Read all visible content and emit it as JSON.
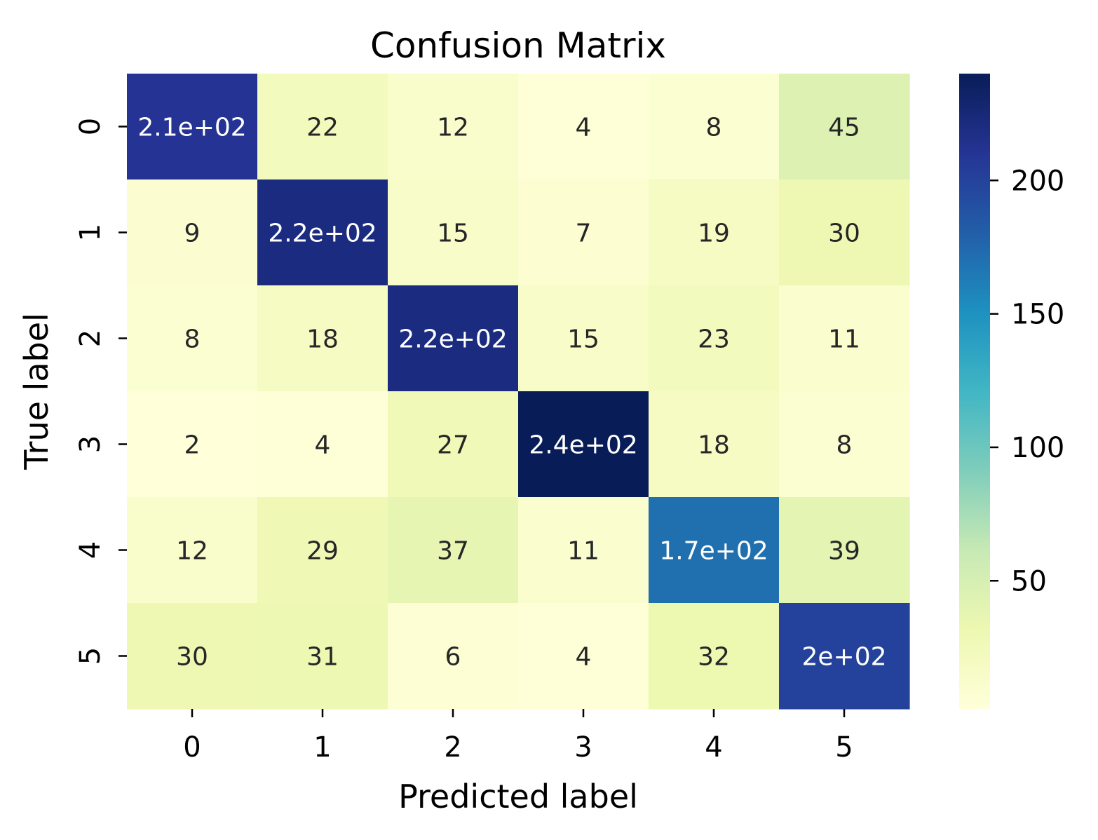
{
  "chart_data": {
    "type": "heatmap",
    "title": "Confusion Matrix",
    "xlabel": "Predicted label",
    "ylabel": "True label",
    "x_categories": [
      "0",
      "1",
      "2",
      "3",
      "4",
      "5"
    ],
    "y_categories": [
      "0",
      "1",
      "2",
      "3",
      "4",
      "5"
    ],
    "values": [
      [
        210,
        22,
        12,
        4,
        8,
        45
      ],
      [
        9,
        220,
        15,
        7,
        19,
        30
      ],
      [
        8,
        18,
        220,
        15,
        23,
        11
      ],
      [
        2,
        4,
        27,
        240,
        18,
        8
      ],
      [
        12,
        29,
        37,
        11,
        170,
        39
      ],
      [
        30,
        31,
        6,
        4,
        32,
        200
      ]
    ],
    "annotations": [
      [
        "2.1e+02",
        "22",
        "12",
        "4",
        "8",
        "45"
      ],
      [
        "9",
        "2.2e+02",
        "15",
        "7",
        "19",
        "30"
      ],
      [
        "8",
        "18",
        "2.2e+02",
        "15",
        "23",
        "11"
      ],
      [
        "2",
        "4",
        "27",
        "2.4e+02",
        "18",
        "8"
      ],
      [
        "12",
        "29",
        "37",
        "11",
        "1.7e+02",
        "39"
      ],
      [
        "30",
        "31",
        "6",
        "4",
        "32",
        "2e+02"
      ]
    ],
    "colormap": "YlGnBu",
    "colorbar": {
      "vmin": 2,
      "vmax": 240,
      "ticks": [
        50,
        100,
        150,
        200
      ],
      "tick_labels": [
        "50",
        "100",
        "150",
        "200"
      ]
    },
    "colors": {
      "low": "#ffffd9",
      "high": "#081d58"
    }
  }
}
